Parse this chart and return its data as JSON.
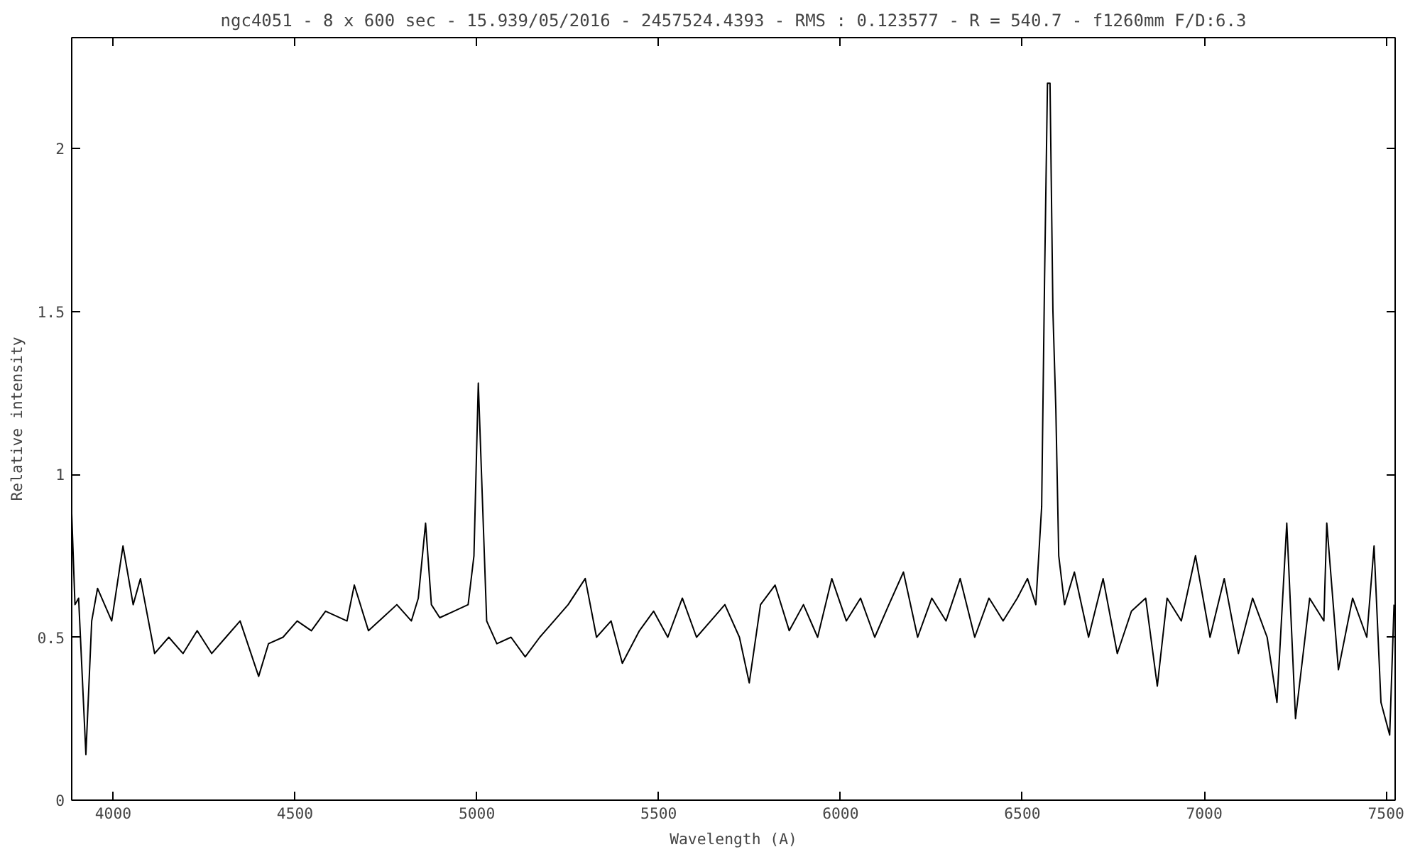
{
  "chart_data": {
    "type": "line",
    "title": "ngc4051 - 8 x 600 sec - 15.939/05/2016 - 2457524.4393 - RMS : 0.123577 - R = 540.7 - f1260mm F/D:6.3",
    "xlabel": "Wavelength (A)",
    "ylabel": "Relative intensity",
    "x": [
      3886,
      3895,
      3905,
      3925,
      3941,
      3957,
      3996,
      4027,
      4055,
      4075,
      4114,
      4153,
      4192,
      4231,
      4271,
      4310,
      4349,
      4400,
      4427,
      4467,
      4506,
      4545,
      4584,
      4643,
      4663,
      4702,
      4741,
      4780,
      4820,
      4839,
      4859,
      4875,
      4898,
      4937,
      4976,
      4992,
      5004,
      5016,
      5027,
      5055,
      5094,
      5133,
      5173,
      5212,
      5251,
      5298,
      5329,
      5369,
      5400,
      5447,
      5486,
      5525,
      5565,
      5604,
      5643,
      5682,
      5722,
      5749,
      5780,
      5820,
      5859,
      5898,
      5937,
      5976,
      6016,
      6055,
      6094,
      6133,
      6173,
      6212,
      6251,
      6290,
      6329,
      6369,
      6408,
      6447,
      6486,
      6514,
      6537,
      6553,
      6561,
      6569,
      6576,
      6584,
      6592,
      6600,
      6616,
      6643,
      6682,
      6722,
      6761,
      6800,
      6839,
      6871,
      6898,
      6937,
      6976,
      7016,
      7055,
      7094,
      7133,
      7173,
      7200,
      7227,
      7251,
      7290,
      7329,
      7337,
      7369,
      7408,
      7447,
      7467,
      7486,
      7510,
      7522
    ],
    "series": [
      {
        "color": "#000000",
        "values": [
          0.88,
          0.6,
          0.62,
          0.14,
          0.55,
          0.65,
          0.55,
          0.78,
          0.6,
          0.68,
          0.45,
          0.5,
          0.45,
          0.52,
          0.45,
          0.5,
          0.55,
          0.38,
          0.48,
          0.5,
          0.55,
          0.52,
          0.58,
          0.55,
          0.66,
          0.52,
          0.56,
          0.6,
          0.55,
          0.62,
          0.85,
          0.6,
          0.56,
          0.58,
          0.6,
          0.75,
          1.28,
          0.9,
          0.55,
          0.48,
          0.5,
          0.44,
          0.5,
          0.55,
          0.6,
          0.68,
          0.5,
          0.55,
          0.42,
          0.52,
          0.58,
          0.5,
          0.62,
          0.5,
          0.55,
          0.6,
          0.5,
          0.36,
          0.6,
          0.66,
          0.52,
          0.6,
          0.5,
          0.68,
          0.55,
          0.62,
          0.5,
          0.6,
          0.7,
          0.5,
          0.62,
          0.55,
          0.68,
          0.5,
          0.62,
          0.55,
          0.62,
          0.68,
          0.6,
          0.9,
          1.6,
          2.2,
          2.2,
          1.5,
          1.2,
          0.75,
          0.6,
          0.7,
          0.5,
          0.68,
          0.45,
          0.58,
          0.62,
          0.35,
          0.62,
          0.55,
          0.75,
          0.5,
          0.68,
          0.45,
          0.62,
          0.5,
          0.3,
          0.85,
          0.25,
          0.62,
          0.55,
          0.85,
          0.4,
          0.62,
          0.5,
          0.78,
          0.3,
          0.2,
          0.6
        ]
      }
    ],
    "xlim": [
      3886,
      7525
    ],
    "ylim": [
      0,
      2.34
    ],
    "xticks": [
      4000,
      4500,
      5000,
      5500,
      6000,
      6500,
      7000,
      7500
    ],
    "yticks": [
      0,
      0.5,
      1,
      1.5,
      2
    ],
    "grid": false
  }
}
